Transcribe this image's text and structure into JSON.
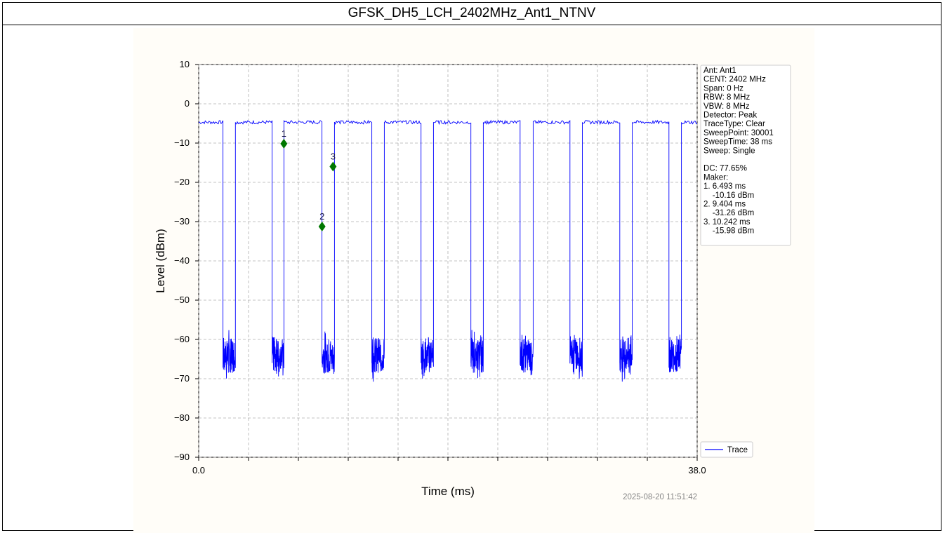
{
  "title": "GFSK_DH5_LCH_2402MHz_Ant1_NTNV",
  "timestamp": "2025-08-20 11:51:42",
  "chart_data": {
    "type": "line",
    "xlabel": "Time (ms)",
    "ylabel": "Level (dBm)",
    "xlim": [
      0.0,
      38.0
    ],
    "ylim": [
      -90,
      10
    ],
    "x_tick_labels": [
      "0.0",
      "38.0"
    ],
    "y_ticks": [
      10,
      0,
      -10,
      -20,
      -30,
      -40,
      -50,
      -60,
      -70,
      -80,
      -90
    ],
    "y_tick_labels": [
      "10",
      "0",
      "−10",
      "−20",
      "−30",
      "−40",
      "−50",
      "−60",
      "−70",
      "−80",
      "−90"
    ],
    "grid": true,
    "trace_color": "#0000ff",
    "high_level": -4.7,
    "low_level": -64,
    "low_segments": [
      [
        1.85,
        2.8
      ],
      [
        5.6,
        6.5
      ],
      [
        9.4,
        10.35
      ],
      [
        13.2,
        14.15
      ],
      [
        16.95,
        17.9
      ],
      [
        20.75,
        21.7
      ],
      [
        24.5,
        25.5
      ],
      [
        28.3,
        29.25
      ],
      [
        32.1,
        33.05
      ],
      [
        35.85,
        36.8
      ]
    ],
    "series": [
      {
        "name": "Trace"
      }
    ],
    "legend_location": "lower-right",
    "markers": [
      {
        "label": "1",
        "x": 6.493,
        "y": -10.16
      },
      {
        "label": "2",
        "x": 9.404,
        "y": -31.26
      },
      {
        "label": "3",
        "x": 10.242,
        "y": -15.98
      }
    ],
    "marker_color": "#007700"
  },
  "info_lines": [
    "Ant: Ant1",
    "CENT: 2402 MHz",
    "Span: 0 Hz",
    "RBW: 8 MHz",
    "VBW: 8 MHz",
    "Detector: Peak",
    "TraceType: Clear",
    "SweepPoint: 30001",
    "SweepTime: 38 ms",
    "Sweep: Single",
    "",
    "DC: 77.65%",
    "Maker:",
    "1. 6.493 ms",
    "    -10.16 dBm",
    "2. 9.404 ms",
    "    -31.26 dBm",
    "3. 10.242 ms",
    "    -15.98 dBm"
  ]
}
